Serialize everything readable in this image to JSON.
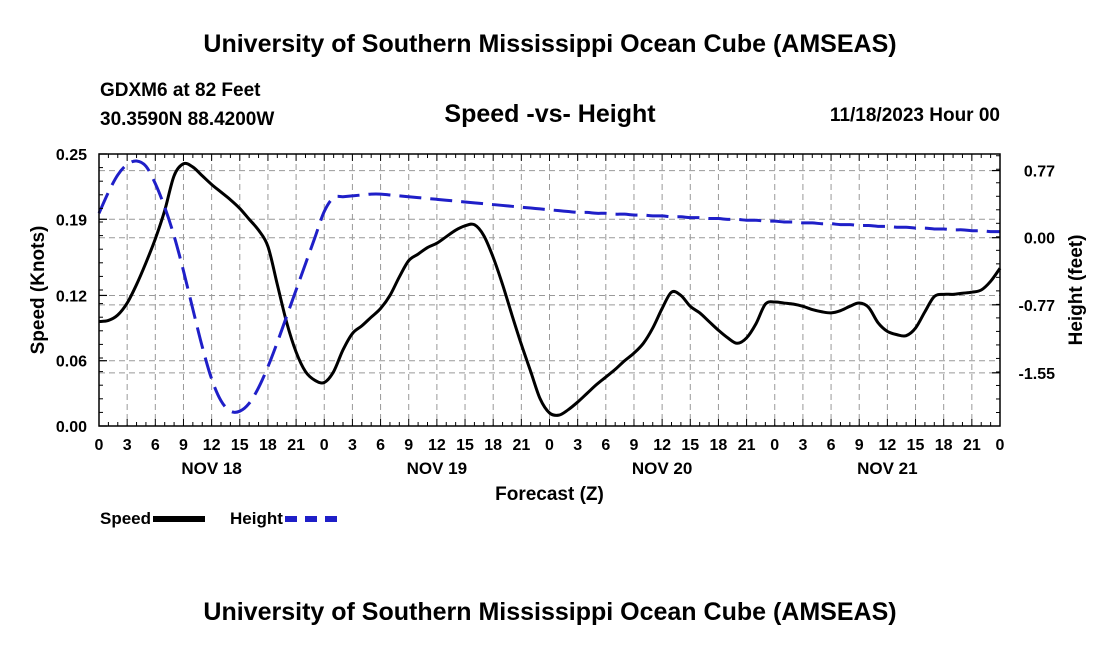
{
  "header": {
    "title": "University of Southern Mississippi Ocean Cube (AMSEAS)",
    "station_line1": "GDXM6 at 82 Feet",
    "station_line2": "30.3590N  88.4200W",
    "subtitle": "Speed -vs- Height",
    "datetime": "11/18/2023 Hour 00"
  },
  "footer": {
    "title": "University of Southern Mississippi Ocean Cube (AMSEAS)"
  },
  "legend": {
    "speed_label": "Speed",
    "height_label": "Height"
  },
  "colors": {
    "speed": "#000000",
    "height": "#1f1fc8"
  },
  "chart_data": {
    "type": "line",
    "title": "Speed -vs- Height",
    "xlabel": "Forecast (Z)",
    "ylabel": "Speed (Knots)",
    "y2label": "Height (feet)",
    "xlim": [
      0,
      96
    ],
    "ylim": [
      0,
      0.25
    ],
    "y2lim": [
      -2.16,
      0.96
    ],
    "grid": true,
    "legend_position": "bottom-left",
    "x_ticks": [
      0,
      3,
      6,
      9,
      12,
      15,
      18,
      21,
      24,
      27,
      30,
      33,
      36,
      39,
      42,
      45,
      48,
      51,
      54,
      57,
      60,
      63,
      66,
      69,
      72,
      75,
      78,
      81,
      84,
      87,
      90,
      93,
      96
    ],
    "x_tick_labels": [
      "0",
      "3",
      "6",
      "9",
      "12",
      "15",
      "18",
      "21",
      "0",
      "3",
      "6",
      "9",
      "12",
      "15",
      "18",
      "21",
      "0",
      "3",
      "6",
      "9",
      "12",
      "15",
      "18",
      "21",
      "0",
      "3",
      "6",
      "9",
      "12",
      "15",
      "18",
      "21",
      "0"
    ],
    "date_labels": [
      {
        "x": 12,
        "label": "NOV 18"
      },
      {
        "x": 36,
        "label": "NOV 19"
      },
      {
        "x": 60,
        "label": "NOV 20"
      },
      {
        "x": 84,
        "label": "NOV 21"
      }
    ],
    "y_ticks": [
      0.0,
      0.06,
      0.12,
      0.19,
      0.25
    ],
    "y_tick_labels": [
      "0.00",
      "0.06",
      "0.12",
      "0.19",
      "0.25"
    ],
    "y2_ticks": [
      0.77,
      0.0,
      -0.77,
      -1.55
    ],
    "y2_tick_labels": [
      "0.77",
      "0.00",
      "-0.77",
      "-1.55"
    ],
    "series": [
      {
        "name": "Speed",
        "axis": "left",
        "style": "solid",
        "x": [
          0,
          1,
          2,
          3,
          4,
          5,
          6,
          7,
          8,
          9,
          10,
          11,
          12,
          13,
          14,
          15,
          16,
          17,
          18,
          19,
          20,
          21,
          22,
          23,
          24,
          25,
          26,
          27,
          28,
          29,
          30,
          31,
          32,
          33,
          34,
          35,
          36,
          37,
          38,
          39,
          40,
          41,
          42,
          43,
          44,
          45,
          46,
          47,
          48,
          49,
          50,
          51,
          52,
          53,
          54,
          55,
          56,
          57,
          58,
          59,
          60,
          61,
          62,
          63,
          64,
          65,
          66,
          67,
          68,
          69,
          70,
          71,
          72,
          73,
          74,
          75,
          76,
          77,
          78,
          79,
          80,
          81,
          82,
          83,
          84,
          85,
          86,
          87,
          88,
          89,
          90,
          91,
          92,
          93,
          94,
          95,
          96
        ],
        "values": [
          0.096,
          0.097,
          0.102,
          0.113,
          0.13,
          0.15,
          0.172,
          0.198,
          0.23,
          0.241,
          0.238,
          0.23,
          0.222,
          0.215,
          0.208,
          0.2,
          0.19,
          0.18,
          0.165,
          0.13,
          0.095,
          0.068,
          0.05,
          0.042,
          0.04,
          0.05,
          0.07,
          0.085,
          0.092,
          0.1,
          0.108,
          0.12,
          0.137,
          0.152,
          0.158,
          0.164,
          0.168,
          0.174,
          0.18,
          0.184,
          0.185,
          0.175,
          0.155,
          0.13,
          0.102,
          0.075,
          0.05,
          0.025,
          0.012,
          0.01,
          0.015,
          0.022,
          0.03,
          0.038,
          0.045,
          0.052,
          0.06,
          0.067,
          0.076,
          0.09,
          0.108,
          0.123,
          0.12,
          0.11,
          0.104,
          0.096,
          0.088,
          0.081,
          0.076,
          0.081,
          0.094,
          0.112,
          0.114,
          0.113,
          0.112,
          0.11,
          0.107,
          0.105,
          0.104,
          0.106,
          0.11,
          0.113,
          0.109,
          0.095,
          0.087,
          0.084,
          0.083,
          0.09,
          0.105,
          0.119,
          0.121,
          0.121,
          0.122,
          0.123,
          0.125,
          0.133,
          0.145
        ]
      },
      {
        "name": "Height",
        "axis": "right",
        "style": "dashed",
        "x": [
          0,
          1,
          2,
          3,
          4,
          5,
          6,
          7,
          8,
          9,
          10,
          11,
          12,
          13,
          14,
          15,
          16,
          17,
          18,
          19,
          20,
          21,
          22,
          23,
          24,
          25,
          26,
          27,
          28,
          29,
          30,
          31,
          32,
          33,
          34,
          35,
          36,
          37,
          38,
          39,
          40,
          41,
          42,
          43,
          44,
          45,
          46,
          47,
          48,
          49,
          50,
          51,
          52,
          53,
          54,
          55,
          56,
          57,
          58,
          59,
          60,
          61,
          62,
          63,
          64,
          65,
          66,
          67,
          68,
          69,
          70,
          71,
          72,
          73,
          74,
          75,
          76,
          77,
          78,
          79,
          80,
          81,
          82,
          83,
          84,
          85,
          86,
          87,
          88,
          89,
          90,
          91,
          92,
          93,
          94,
          95,
          96
        ],
        "values": [
          0.28,
          0.52,
          0.72,
          0.84,
          0.88,
          0.82,
          0.62,
          0.35,
          0.02,
          -0.38,
          -0.82,
          -1.25,
          -1.62,
          -1.87,
          -1.99,
          -1.99,
          -1.9,
          -1.72,
          -1.48,
          -1.2,
          -0.9,
          -0.6,
          -0.3,
          0.0,
          0.3,
          0.46,
          0.47,
          0.48,
          0.49,
          0.5,
          0.5,
          0.49,
          0.48,
          0.47,
          0.46,
          0.45,
          0.44,
          0.43,
          0.42,
          0.41,
          0.4,
          0.39,
          0.38,
          0.37,
          0.36,
          0.35,
          0.34,
          0.33,
          0.32,
          0.31,
          0.3,
          0.29,
          0.29,
          0.28,
          0.28,
          0.27,
          0.27,
          0.26,
          0.26,
          0.25,
          0.25,
          0.24,
          0.24,
          0.23,
          0.23,
          0.22,
          0.22,
          0.21,
          0.21,
          0.2,
          0.2,
          0.19,
          0.19,
          0.18,
          0.18,
          0.17,
          0.17,
          0.16,
          0.16,
          0.15,
          0.15,
          0.14,
          0.14,
          0.13,
          0.13,
          0.12,
          0.12,
          0.11,
          0.11,
          0.1,
          0.1,
          0.09,
          0.09,
          0.08,
          0.08,
          0.07,
          0.07
        ]
      }
    ]
  }
}
